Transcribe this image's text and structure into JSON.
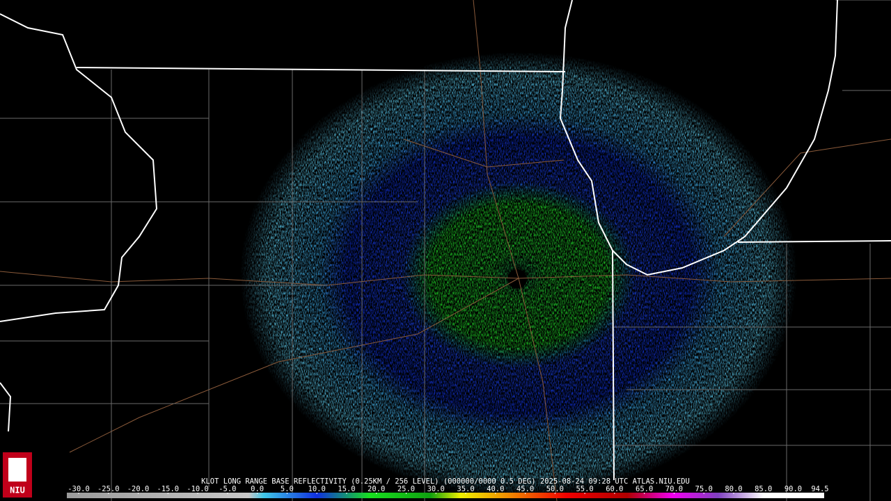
{
  "header": {
    "caption": "KLOT LONG RANGE BASE REFLECTIVITY (0.25KM / 256 LEVEL) (000000/0000 0.5 DEG) 2025-08-24 09:28 UTC  ATLAS.NIU.EDU"
  },
  "logo": {
    "text": "NIU"
  },
  "colorbar": {
    "range": [
      -30,
      94.5
    ],
    "ticks": [
      {
        "value": -30,
        "label": "-30.0"
      },
      {
        "value": -25,
        "label": "-25.0"
      },
      {
        "value": -20,
        "label": "-20.0"
      },
      {
        "value": -15,
        "label": "-15.0"
      },
      {
        "value": -10,
        "label": "-10.0"
      },
      {
        "value": -5,
        "label": "-5.0"
      },
      {
        "value": 0,
        "label": "0.0"
      },
      {
        "value": 5,
        "label": "5.0"
      },
      {
        "value": 10,
        "label": "10.0"
      },
      {
        "value": 15,
        "label": "15.0"
      },
      {
        "value": 20,
        "label": "20.0"
      },
      {
        "value": 25,
        "label": "25.0"
      },
      {
        "value": 30,
        "label": "30.0"
      },
      {
        "value": 35,
        "label": "35.0"
      },
      {
        "value": 40,
        "label": "40.0"
      },
      {
        "value": 45,
        "label": "45.0"
      },
      {
        "value": 50,
        "label": "50.0"
      },
      {
        "value": 55,
        "label": "55.0"
      },
      {
        "value": 60,
        "label": "60.0"
      },
      {
        "value": 65,
        "label": "65.0"
      },
      {
        "value": 70,
        "label": "70.0"
      },
      {
        "value": 75,
        "label": "75.0"
      },
      {
        "value": 80,
        "label": "80.0"
      },
      {
        "value": 85,
        "label": "85.0"
      },
      {
        "value": 90,
        "label": "90.0"
      },
      {
        "value": 94.5,
        "label": "94.5"
      }
    ]
  }
}
